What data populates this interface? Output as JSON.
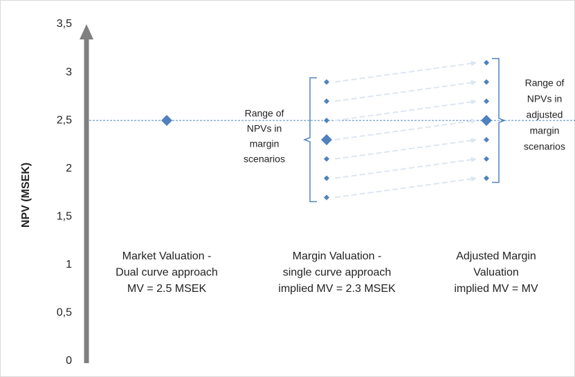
{
  "chart_data": {
    "type": "scatter",
    "y_label": "NPV (MSEK)",
    "categories": [
      [
        "Market Valuation -",
        "Dual curve approach",
        "MV = 2.5 MSEK"
      ],
      [
        "Margin Valuation -",
        "single curve approach",
        "implied MV = 2.3 MSEK"
      ],
      [
        "Adjusted Margin",
        "Valuation",
        "implied MV = MV"
      ]
    ],
    "series": [
      {
        "color": "#4f81bd",
        "values": [
          2.5
        ],
        "highlight": 0
      },
      {
        "color": "#4f81bd",
        "values": [
          2.9,
          2.7,
          2.5,
          2.3,
          2.1,
          1.9,
          1.7
        ],
        "highlight": 3
      },
      {
        "color": "#4f81bd",
        "values": [
          3.1,
          2.9,
          2.7,
          2.5,
          2.3,
          2.1,
          1.9
        ],
        "highlight": 3
      }
    ],
    "reference_line": 2.5,
    "annotations": [
      [
        "Range of",
        "NPVs in",
        "margin",
        "scenarios"
      ],
      [
        "Range of",
        "NPVs in",
        "adjusted",
        "margin",
        "scenarios"
      ]
    ],
    "ylim": [
      0,
      3.5
    ],
    "yticks": [
      0,
      {
        "value": 0.5,
        "label": "0,5"
      },
      1,
      {
        "value": 1.5,
        "label": "1,5"
      },
      2,
      {
        "value": 2.5,
        "label": "2,5"
      },
      3,
      {
        "value": 3.5,
        "label": "3,5"
      }
    ],
    "grid": false
  }
}
